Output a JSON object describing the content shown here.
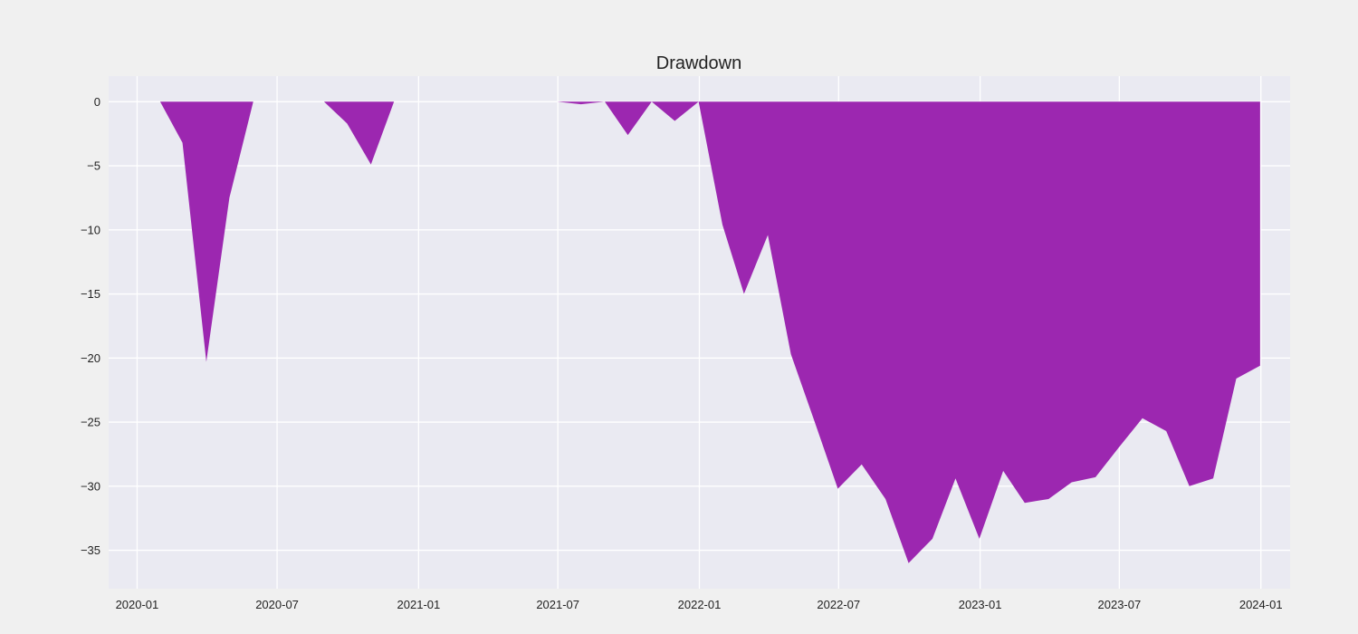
{
  "chart_data": {
    "type": "area",
    "title": "Drawdown",
    "xlabel": "",
    "ylabel": "",
    "xlim": [
      "2019-11-25",
      "2024-02-08"
    ],
    "ylim": [
      -38,
      2
    ],
    "grid": true,
    "fill_color": "#9c27b0",
    "background_color": "#eaeaf2",
    "grid_color": "#ffffff",
    "x_ticks": [
      "2020-01",
      "2020-07",
      "2021-01",
      "2021-07",
      "2022-01",
      "2022-07",
      "2023-01",
      "2023-07",
      "2024-01"
    ],
    "y_ticks": [
      0,
      -5,
      -10,
      -15,
      -20,
      -25,
      -30,
      -35
    ],
    "series": [
      {
        "x": [
          "2020-01-31",
          "2020-02-29",
          "2020-03-31",
          "2020-04-30",
          "2020-05-31",
          "2020-06-30",
          "2020-07-31",
          "2020-08-31",
          "2020-09-30",
          "2020-10-31",
          "2020-11-30",
          "2020-12-31",
          "2021-01-31",
          "2021-02-28",
          "2021-03-31",
          "2021-04-30",
          "2021-05-31",
          "2021-06-30",
          "2021-07-31",
          "2021-08-31",
          "2021-09-30",
          "2021-10-31",
          "2021-11-30",
          "2021-12-31",
          "2022-01-31",
          "2022-02-28",
          "2022-03-31",
          "2022-04-30",
          "2022-05-31",
          "2022-06-30",
          "2022-07-31",
          "2022-08-31",
          "2022-09-30",
          "2022-10-31",
          "2022-11-30",
          "2022-12-31",
          "2023-01-31",
          "2023-02-28",
          "2023-03-31",
          "2023-04-30",
          "2023-05-31",
          "2023-06-30",
          "2023-07-31",
          "2023-08-31",
          "2023-09-30",
          "2023-10-31",
          "2023-11-30",
          "2023-12-31"
        ],
        "y": [
          0,
          -3.2,
          -20.3,
          -7.5,
          0,
          0,
          0,
          0,
          -1.7,
          -4.9,
          0,
          0,
          0,
          0,
          0,
          0,
          0,
          0,
          -0.2,
          0,
          -2.6,
          0,
          -1.5,
          0,
          -9.6,
          -15.0,
          -10.4,
          -19.7,
          -25.0,
          -30.2,
          -28.3,
          -31.0,
          -36.0,
          -34.1,
          -29.4,
          -34.1,
          -28.8,
          -31.3,
          -31.0,
          -29.7,
          -29.3,
          -27.0,
          -24.7,
          -25.7,
          -30.0,
          -29.4,
          -21.6,
          -20.6
        ]
      }
    ]
  }
}
